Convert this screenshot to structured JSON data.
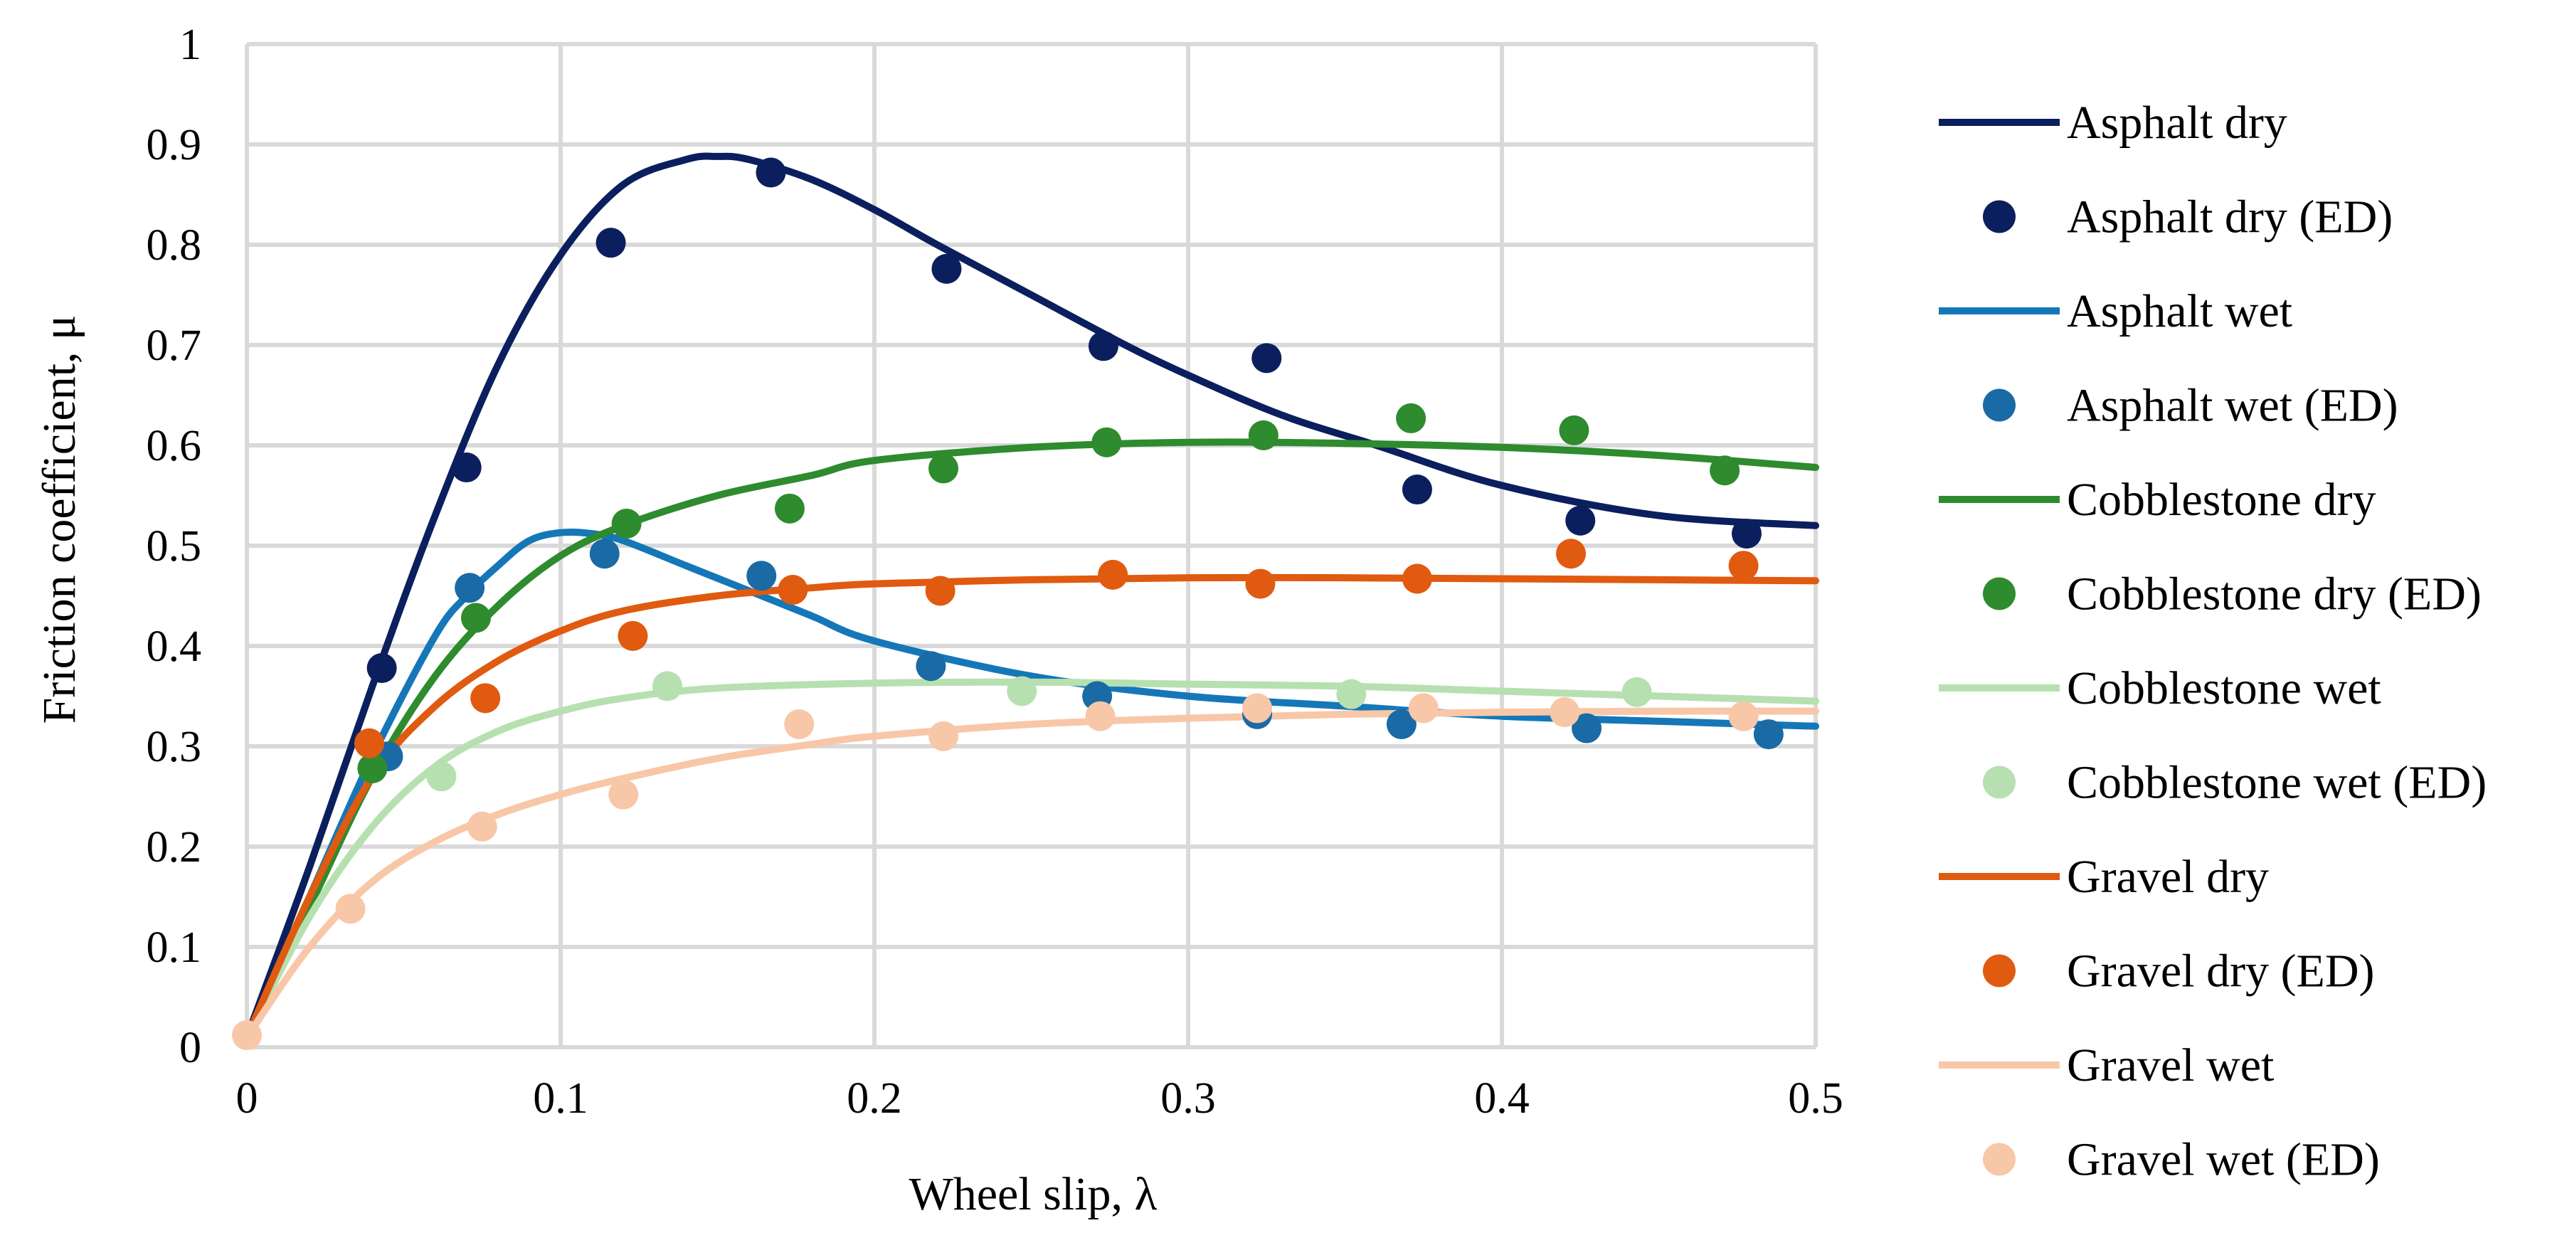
{
  "chart_data": {
    "type": "line",
    "xlabel": "Wheel slip, λ",
    "ylabel": "Friction coefficient, μ",
    "xlim": [
      0,
      0.5
    ],
    "ylim": [
      0,
      1
    ],
    "grid": true,
    "legend_position": "right",
    "x_ticks": [
      "0",
      "0.1",
      "0.2",
      "0.3",
      "0.4",
      "0.5"
    ],
    "y_ticks": [
      "0",
      "0.1",
      "0.2",
      "0.3",
      "0.4",
      "0.5",
      "0.6",
      "0.7",
      "0.8",
      "0.9",
      "1"
    ],
    "series": [
      {
        "name": "Asphalt dry",
        "style": "line",
        "color": "#0b1f5e",
        "x": [
          0,
          0.02,
          0.04,
          0.06,
          0.08,
          0.1,
          0.12,
          0.14,
          0.15,
          0.16,
          0.18,
          0.2,
          0.22,
          0.25,
          0.28,
          0.3,
          0.33,
          0.36,
          0.4,
          0.45,
          0.5
        ],
        "y": [
          0.01,
          0.18,
          0.36,
          0.53,
          0.68,
          0.79,
          0.86,
          0.885,
          0.888,
          0.885,
          0.865,
          0.835,
          0.8,
          0.75,
          0.7,
          0.67,
          0.63,
          0.6,
          0.56,
          0.53,
          0.52
        ]
      },
      {
        "name": "Asphalt dry (ED)",
        "style": "marker",
        "color": "#0b1f5e",
        "x": [
          0.043,
          0.07,
          0.116,
          0.167,
          0.223,
          0.273,
          0.325,
          0.373,
          0.425,
          0.478
        ],
        "y": [
          0.378,
          0.578,
          0.802,
          0.872,
          0.776,
          0.699,
          0.687,
          0.556,
          0.525,
          0.512
        ]
      },
      {
        "name": "Asphalt wet",
        "style": "line",
        "color": "#1577b8",
        "x": [
          0,
          0.02,
          0.04,
          0.06,
          0.07,
          0.08,
          0.09,
          0.1,
          0.11,
          0.12,
          0.14,
          0.16,
          0.18,
          0.2,
          0.25,
          0.3,
          0.35,
          0.4,
          0.45,
          0.5
        ],
        "y": [
          0.01,
          0.15,
          0.29,
          0.41,
          0.45,
          0.48,
          0.505,
          0.513,
          0.512,
          0.505,
          0.48,
          0.455,
          0.43,
          0.405,
          0.37,
          0.35,
          0.34,
          0.33,
          0.325,
          0.32
        ]
      },
      {
        "name": "Asphalt wet (ED)",
        "style": "marker",
        "color": "#1a6aa5",
        "x": [
          0.045,
          0.071,
          0.114,
          0.164,
          0.218,
          0.271,
          0.322,
          0.368,
          0.427,
          0.485
        ],
        "y": [
          0.29,
          0.458,
          0.492,
          0.47,
          0.38,
          0.35,
          0.332,
          0.322,
          0.318,
          0.312
        ]
      },
      {
        "name": "Cobblestone dry",
        "style": "line",
        "color": "#2e8b2e",
        "x": [
          0,
          0.02,
          0.04,
          0.06,
          0.08,
          0.1,
          0.12,
          0.15,
          0.18,
          0.2,
          0.25,
          0.3,
          0.35,
          0.4,
          0.45,
          0.5
        ],
        "y": [
          0.01,
          0.14,
          0.27,
          0.37,
          0.44,
          0.49,
          0.52,
          0.55,
          0.57,
          0.585,
          0.598,
          0.603,
          0.602,
          0.598,
          0.59,
          0.578
        ]
      },
      {
        "name": "Cobblestone dry (ED)",
        "style": "marker",
        "color": "#2e8b2e",
        "x": [
          0.04,
          0.073,
          0.121,
          0.173,
          0.222,
          0.274,
          0.324,
          0.371,
          0.423,
          0.471
        ],
        "y": [
          0.278,
          0.428,
          0.522,
          0.537,
          0.577,
          0.603,
          0.61,
          0.627,
          0.615,
          0.575
        ]
      },
      {
        "name": "Cobblestone wet",
        "style": "line",
        "color": "#b7e0b0",
        "x": [
          0,
          0.02,
          0.04,
          0.06,
          0.08,
          0.1,
          0.12,
          0.15,
          0.2,
          0.25,
          0.3,
          0.35,
          0.4,
          0.45,
          0.5
        ],
        "y": [
          0.01,
          0.13,
          0.22,
          0.28,
          0.315,
          0.335,
          0.348,
          0.358,
          0.363,
          0.364,
          0.362,
          0.36,
          0.355,
          0.35,
          0.345
        ]
      },
      {
        "name": "Cobblestone wet (ED)",
        "style": "marker",
        "color": "#b7e0b0",
        "x": [
          0.062,
          0.134,
          0.247,
          0.352,
          0.443
        ],
        "y": [
          0.27,
          0.36,
          0.355,
          0.352,
          0.354
        ]
      },
      {
        "name": "Gravel dry",
        "style": "line",
        "color": "#e05a10",
        "x": [
          0,
          0.02,
          0.04,
          0.06,
          0.08,
          0.1,
          0.12,
          0.15,
          0.18,
          0.2,
          0.25,
          0.3,
          0.35,
          0.4,
          0.45,
          0.5
        ],
        "y": [
          0.01,
          0.15,
          0.27,
          0.34,
          0.385,
          0.415,
          0.435,
          0.45,
          0.458,
          0.462,
          0.466,
          0.468,
          0.468,
          0.467,
          0.466,
          0.465
        ]
      },
      {
        "name": "Gravel dry (ED)",
        "style": "marker",
        "color": "#e05a10",
        "x": [
          0.039,
          0.076,
          0.123,
          0.174,
          0.221,
          0.276,
          0.323,
          0.373,
          0.422,
          0.477
        ],
        "y": [
          0.303,
          0.348,
          0.41,
          0.456,
          0.455,
          0.471,
          0.462,
          0.467,
          0.492,
          0.48
        ]
      },
      {
        "name": "Gravel wet",
        "style": "line",
        "color": "#f8c7a8",
        "x": [
          0,
          0.02,
          0.04,
          0.06,
          0.08,
          0.1,
          0.12,
          0.15,
          0.18,
          0.2,
          0.25,
          0.3,
          0.35,
          0.4,
          0.45,
          0.5
        ],
        "y": [
          0.01,
          0.1,
          0.165,
          0.205,
          0.232,
          0.252,
          0.268,
          0.288,
          0.302,
          0.31,
          0.322,
          0.328,
          0.332,
          0.334,
          0.335,
          0.335
        ]
      },
      {
        "name": "Gravel wet (ED)",
        "style": "marker",
        "color": "#f8c7a8",
        "x": [
          0,
          0.033,
          0.075,
          0.12,
          0.176,
          0.222,
          0.272,
          0.322,
          0.375,
          0.42,
          0.477
        ],
        "y": [
          0.012,
          0.138,
          0.22,
          0.252,
          0.322,
          0.31,
          0.33,
          0.338,
          0.338,
          0.334,
          0.33
        ]
      }
    ]
  }
}
